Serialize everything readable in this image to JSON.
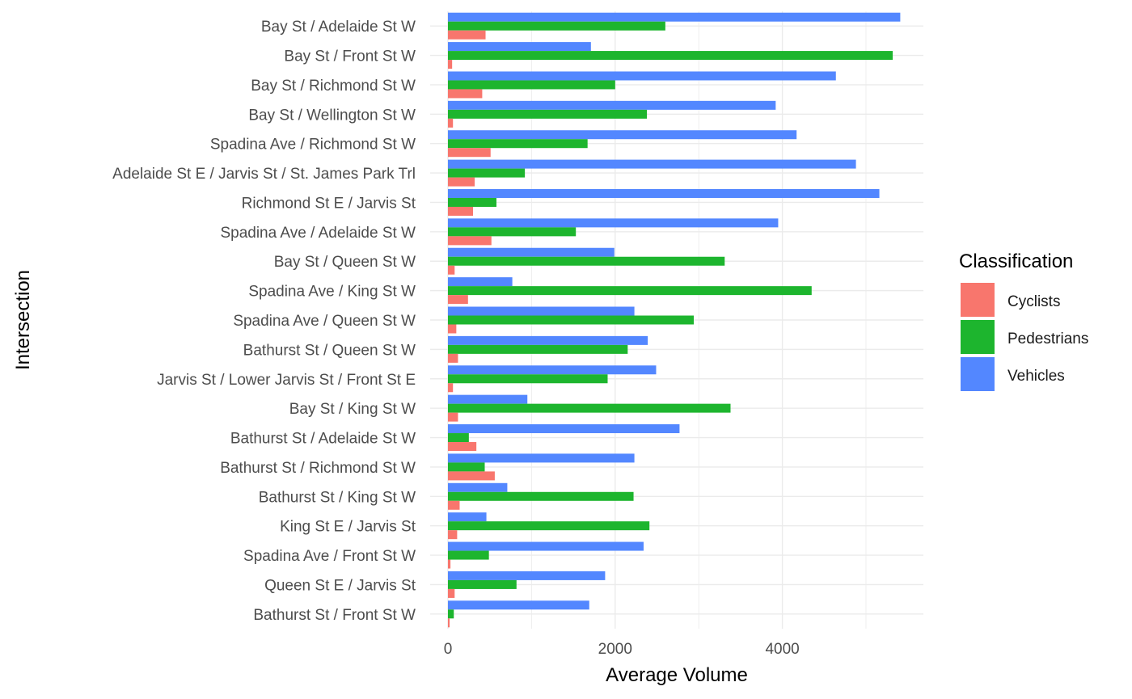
{
  "chart_data": {
    "type": "bar",
    "orientation": "horizontal",
    "xlabel": "Average Volume",
    "ylabel": "Intersection",
    "xlim": [
      0,
      5600
    ],
    "x_ticks": [
      0,
      2000,
      4000
    ],
    "grid": true,
    "legend_position": "right",
    "legend_title": "Classification",
    "categories": [
      "Bay St / Adelaide St W",
      "Bay St / Front St W",
      "Bay St / Richmond St W",
      "Bay St / Wellington St W",
      "Spadina Ave / Richmond St W",
      "Adelaide St E / Jarvis St / St. James Park Trl",
      "Richmond St E / Jarvis St",
      "Spadina Ave / Adelaide St W",
      "Bay St / Queen St W",
      "Spadina Ave / King St W",
      "Spadina Ave / Queen St W",
      "Bathurst St / Queen St W",
      "Jarvis St / Lower Jarvis St / Front St E",
      "Bay St / King St W",
      "Bathurst St / Adelaide St W",
      "Bathurst St / Richmond St W",
      "Bathurst St / King St W",
      "King St E / Jarvis St",
      "Spadina Ave / Front St W",
      "Queen St E / Jarvis St",
      "Bathurst St / Front St W"
    ],
    "series": [
      {
        "name": "Cyclists",
        "color": "#F8766D",
        "values": [
          450,
          50,
          410,
          60,
          510,
          320,
          300,
          520,
          80,
          240,
          100,
          120,
          60,
          120,
          340,
          560,
          140,
          110,
          30,
          80,
          20
        ]
      },
      {
        "name": "Pedestrians",
        "color": "#1DB52E",
        "values": [
          2600,
          5320,
          2000,
          2380,
          1670,
          920,
          580,
          1530,
          3310,
          4350,
          2940,
          2150,
          1910,
          3380,
          250,
          440,
          2220,
          2410,
          490,
          820,
          70
        ]
      },
      {
        "name": "Vehicles",
        "color": "#5387FF",
        "values": [
          5410,
          1710,
          4640,
          3920,
          4170,
          4880,
          5160,
          3950,
          1990,
          770,
          2230,
          2390,
          2490,
          950,
          2770,
          2230,
          710,
          460,
          2340,
          1880,
          1690
        ]
      }
    ]
  }
}
